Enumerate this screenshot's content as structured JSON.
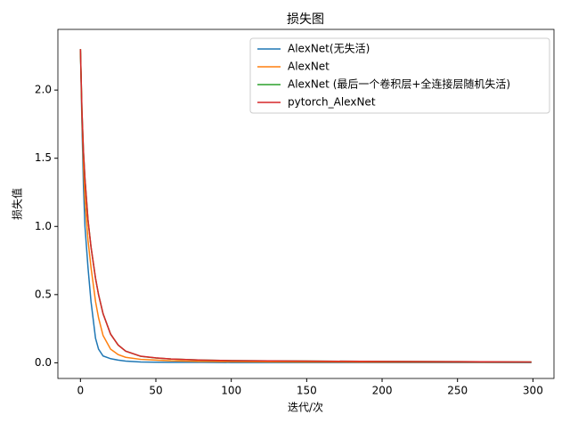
{
  "chart_data": {
    "type": "line",
    "title": "损失图",
    "x_label": "迭代/次",
    "y_label": "损失值",
    "x": [
      0,
      1,
      2,
      3,
      5,
      7,
      10,
      12,
      15,
      20,
      25,
      30,
      40,
      50,
      60,
      80,
      100,
      150,
      200,
      250,
      299
    ],
    "series": [
      {
        "name": "AlexNet(无失活)",
        "color": "#1f77b4",
        "values": [
          2.3,
          1.75,
          1.3,
          1.0,
          0.7,
          0.45,
          0.18,
          0.1,
          0.05,
          0.03,
          0.02,
          0.012,
          0.006,
          0.004,
          0.003,
          0.003,
          0.002,
          0.002,
          0.002,
          0.002,
          0.002
        ]
      },
      {
        "name": "AlexNet",
        "color": "#ff7f0e",
        "values": [
          2.3,
          1.8,
          1.45,
          1.2,
          0.9,
          0.7,
          0.45,
          0.33,
          0.2,
          0.1,
          0.06,
          0.04,
          0.025,
          0.02,
          0.015,
          0.01,
          0.008,
          0.006,
          0.005,
          0.005,
          0.004
        ]
      },
      {
        "name": "AlexNet (最后一个卷积层+全连接层随机失活)",
        "color": "#2ca02c",
        "values": [
          2.3,
          1.85,
          1.55,
          1.35,
          1.05,
          0.85,
          0.62,
          0.5,
          0.36,
          0.21,
          0.13,
          0.085,
          0.047,
          0.035,
          0.028,
          0.02,
          0.016,
          0.012,
          0.01,
          0.008,
          0.006
        ]
      },
      {
        "name": "pytorch_AlexNet",
        "color": "#d62728",
        "values": [
          2.3,
          1.85,
          1.55,
          1.35,
          1.05,
          0.85,
          0.62,
          0.5,
          0.36,
          0.21,
          0.13,
          0.085,
          0.048,
          0.036,
          0.028,
          0.02,
          0.016,
          0.012,
          0.01,
          0.008,
          0.006
        ]
      }
    ],
    "xlim": [
      -14.95,
      313.95
    ],
    "xticks": [
      0,
      50,
      100,
      150,
      200,
      250,
      300
    ],
    "ylim": [
      -0.115,
      2.445
    ],
    "yticks": [
      {
        "value": 0,
        "label": "0.0"
      },
      0.5,
      {
        "value": 1,
        "label": "1.0"
      },
      1.5,
      {
        "value": 2,
        "label": "2.0"
      }
    ],
    "legend": "upper right"
  }
}
